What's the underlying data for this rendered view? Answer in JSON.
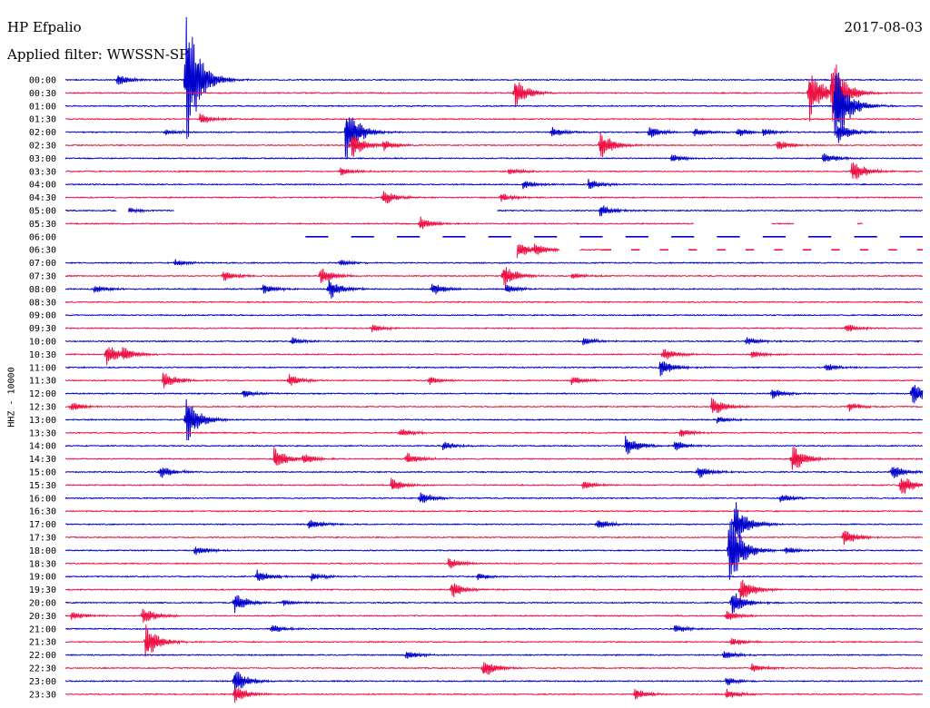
{
  "header": {
    "station": "HP Efpalio",
    "filter": "Applied filter: WWSSN-SP",
    "date": "2017-08-03"
  },
  "chart_data": {
    "type": "line",
    "title": "HP Efpalio",
    "subtitle": "Applied filter: WWSSN-SP",
    "date": "2017-08-03",
    "ylabel": "HHZ - 10000",
    "xlabel": "",
    "row_labels": [
      "00:00",
      "00:30",
      "01:00",
      "01:30",
      "02:00",
      "02:30",
      "03:00",
      "03:30",
      "04:00",
      "04:30",
      "05:00",
      "05:30",
      "06:00",
      "06:30",
      "07:00",
      "07:30",
      "08:00",
      "08:30",
      "09:00",
      "09:30",
      "10:00",
      "10:30",
      "11:00",
      "11:30",
      "12:00",
      "12:30",
      "13:00",
      "13:30",
      "14:00",
      "14:30",
      "15:00",
      "15:30",
      "16:00",
      "16:30",
      "17:00",
      "17:30",
      "18:00",
      "18:30",
      "19:00",
      "19:30",
      "20:00",
      "20:30",
      "21:00",
      "21:30",
      "22:00",
      "22:30",
      "23:00",
      "23:30"
    ],
    "row_minutes": 30,
    "colors": [
      "#0000cc",
      "#ee1144"
    ],
    "legend": "none",
    "grid": false,
    "events": [
      {
        "row": 0,
        "minute": 4.2,
        "amplitude": 6.5
      },
      {
        "row": 0,
        "minute": 1.8,
        "amplitude": 0.6
      },
      {
        "row": 1,
        "minute": 15.7,
        "amplitude": 1.3
      },
      {
        "row": 1,
        "minute": 26.0,
        "amplitude": 2.5
      },
      {
        "row": 1,
        "minute": 26.8,
        "amplitude": 3.5
      },
      {
        "row": 2,
        "minute": 26.9,
        "amplitude": 4.0
      },
      {
        "row": 3,
        "minute": 4.7,
        "amplitude": 0.5
      },
      {
        "row": 4,
        "minute": 3.5,
        "amplitude": 0.3
      },
      {
        "row": 4,
        "minute": 9.8,
        "amplitude": 2.5
      },
      {
        "row": 4,
        "minute": 17.0,
        "amplitude": 0.5
      },
      {
        "row": 4,
        "minute": 20.4,
        "amplitude": 0.6
      },
      {
        "row": 4,
        "minute": 22.0,
        "amplitude": 0.4
      },
      {
        "row": 4,
        "minute": 23.5,
        "amplitude": 0.4
      },
      {
        "row": 4,
        "minute": 24.4,
        "amplitude": 0.4
      },
      {
        "row": 4,
        "minute": 27.0,
        "amplitude": 1.0
      },
      {
        "row": 5,
        "minute": 10.0,
        "amplitude": 1.2
      },
      {
        "row": 5,
        "minute": 11.1,
        "amplitude": 0.5
      },
      {
        "row": 5,
        "minute": 18.7,
        "amplitude": 1.3
      },
      {
        "row": 5,
        "minute": 24.9,
        "amplitude": 0.5
      },
      {
        "row": 6,
        "minute": 21.2,
        "amplitude": 0.4
      },
      {
        "row": 6,
        "minute": 26.5,
        "amplitude": 0.5
      },
      {
        "row": 7,
        "minute": 9.6,
        "amplitude": 0.4
      },
      {
        "row": 7,
        "minute": 15.5,
        "amplitude": 0.3
      },
      {
        "row": 7,
        "minute": 27.5,
        "amplitude": 1.1
      },
      {
        "row": 8,
        "minute": 16.0,
        "amplitude": 0.4
      },
      {
        "row": 8,
        "minute": 18.3,
        "amplitude": 0.5
      },
      {
        "row": 9,
        "minute": 11.1,
        "amplitude": 0.7
      },
      {
        "row": 9,
        "minute": 15.2,
        "amplitude": 0.4
      },
      {
        "row": 10,
        "minute": 2.1,
        "amplitude": 0.3
      },
      {
        "row": 10,
        "minute": 18.7,
        "amplitude": 0.6
      },
      {
        "row": 11,
        "minute": 12.4,
        "amplitude": 0.6
      },
      {
        "row": 12,
        "minute": 0.8,
        "amplitude": 0.2
      },
      {
        "row": 13,
        "minute": 15.8,
        "amplitude": 0.8
      },
      {
        "row": 13,
        "minute": 16.4,
        "amplitude": 0.6
      },
      {
        "row": 14,
        "minute": 3.8,
        "amplitude": 0.3
      },
      {
        "row": 14,
        "minute": 9.6,
        "amplitude": 0.3
      },
      {
        "row": 15,
        "minute": 5.5,
        "amplitude": 0.5
      },
      {
        "row": 15,
        "minute": 8.9,
        "amplitude": 0.8
      },
      {
        "row": 15,
        "minute": 15.3,
        "amplitude": 1.1
      },
      {
        "row": 15,
        "minute": 17.7,
        "amplitude": 0.3
      },
      {
        "row": 16,
        "minute": 1.0,
        "amplitude": 0.4
      },
      {
        "row": 16,
        "minute": 6.9,
        "amplitude": 0.5
      },
      {
        "row": 16,
        "minute": 9.2,
        "amplitude": 1.0
      },
      {
        "row": 16,
        "minute": 12.8,
        "amplitude": 0.6
      },
      {
        "row": 16,
        "minute": 15.4,
        "amplitude": 0.4
      },
      {
        "row": 19,
        "minute": 10.7,
        "amplitude": 0.4
      },
      {
        "row": 19,
        "minute": 27.3,
        "amplitude": 0.4
      },
      {
        "row": 20,
        "minute": 7.9,
        "amplitude": 0.4
      },
      {
        "row": 20,
        "minute": 18.1,
        "amplitude": 0.4
      },
      {
        "row": 20,
        "minute": 23.8,
        "amplitude": 0.4
      },
      {
        "row": 21,
        "minute": 1.4,
        "amplitude": 1.0
      },
      {
        "row": 21,
        "minute": 2.0,
        "amplitude": 0.6
      },
      {
        "row": 21,
        "minute": 20.9,
        "amplitude": 0.6
      },
      {
        "row": 21,
        "minute": 24.0,
        "amplitude": 0.4
      },
      {
        "row": 22,
        "minute": 20.8,
        "amplitude": 0.8
      },
      {
        "row": 22,
        "minute": 26.6,
        "amplitude": 0.4
      },
      {
        "row": 23,
        "minute": 3.4,
        "amplitude": 0.8
      },
      {
        "row": 23,
        "minute": 7.8,
        "amplitude": 0.6
      },
      {
        "row": 23,
        "minute": 12.7,
        "amplitude": 0.4
      },
      {
        "row": 23,
        "minute": 17.7,
        "amplitude": 0.4
      },
      {
        "row": 24,
        "minute": 6.2,
        "amplitude": 0.4
      },
      {
        "row": 24,
        "minute": 24.7,
        "amplitude": 0.5
      },
      {
        "row": 24,
        "minute": 29.6,
        "amplitude": 1.2
      },
      {
        "row": 25,
        "minute": 0.2,
        "amplitude": 0.4
      },
      {
        "row": 25,
        "minute": 22.6,
        "amplitude": 0.9
      },
      {
        "row": 25,
        "minute": 27.4,
        "amplitude": 0.4
      },
      {
        "row": 26,
        "minute": 4.2,
        "amplitude": 2.2
      },
      {
        "row": 26,
        "minute": 22.8,
        "amplitude": 0.3
      },
      {
        "row": 27,
        "minute": 11.7,
        "amplitude": 0.4
      },
      {
        "row": 27,
        "minute": 21.5,
        "amplitude": 0.4
      },
      {
        "row": 28,
        "minute": 13.2,
        "amplitude": 0.4
      },
      {
        "row": 28,
        "minute": 19.6,
        "amplitude": 0.9
      },
      {
        "row": 28,
        "minute": 21.3,
        "amplitude": 0.5
      },
      {
        "row": 29,
        "minute": 7.3,
        "amplitude": 1.0
      },
      {
        "row": 29,
        "minute": 8.3,
        "amplitude": 0.5
      },
      {
        "row": 29,
        "minute": 11.9,
        "amplitude": 0.6
      },
      {
        "row": 29,
        "minute": 25.4,
        "amplitude": 1.4
      },
      {
        "row": 30,
        "minute": 3.3,
        "amplitude": 0.6
      },
      {
        "row": 30,
        "minute": 22.1,
        "amplitude": 0.6
      },
      {
        "row": 30,
        "minute": 28.9,
        "amplitude": 0.7
      },
      {
        "row": 31,
        "minute": 11.4,
        "amplitude": 0.6
      },
      {
        "row": 31,
        "minute": 18.1,
        "amplitude": 0.4
      },
      {
        "row": 31,
        "minute": 29.2,
        "amplitude": 1.0
      },
      {
        "row": 32,
        "minute": 12.4,
        "amplitude": 0.6
      },
      {
        "row": 32,
        "minute": 25.0,
        "amplitude": 0.4
      },
      {
        "row": 34,
        "minute": 8.5,
        "amplitude": 0.5
      },
      {
        "row": 34,
        "minute": 18.6,
        "amplitude": 0.5
      },
      {
        "row": 34,
        "minute": 23.4,
        "amplitude": 2.0
      },
      {
        "row": 35,
        "minute": 27.2,
        "amplitude": 0.8
      },
      {
        "row": 36,
        "minute": 4.5,
        "amplitude": 0.5
      },
      {
        "row": 36,
        "minute": 23.2,
        "amplitude": 3.5
      },
      {
        "row": 36,
        "minute": 25.2,
        "amplitude": 0.4
      },
      {
        "row": 37,
        "minute": 13.4,
        "amplitude": 0.5
      },
      {
        "row": 38,
        "minute": 6.7,
        "amplitude": 0.6
      },
      {
        "row": 38,
        "minute": 8.6,
        "amplitude": 0.4
      },
      {
        "row": 38,
        "minute": 14.4,
        "amplitude": 0.3
      },
      {
        "row": 39,
        "minute": 13.5,
        "amplitude": 0.8
      },
      {
        "row": 39,
        "minute": 23.6,
        "amplitude": 1.2
      },
      {
        "row": 40,
        "minute": 5.9,
        "amplitude": 0.9
      },
      {
        "row": 40,
        "minute": 7.6,
        "amplitude": 0.3
      },
      {
        "row": 40,
        "minute": 23.3,
        "amplitude": 1.2
      },
      {
        "row": 41,
        "minute": 0.2,
        "amplitude": 0.4
      },
      {
        "row": 41,
        "minute": 2.7,
        "amplitude": 0.8
      },
      {
        "row": 41,
        "minute": 23.1,
        "amplitude": 0.5
      },
      {
        "row": 42,
        "minute": 7.2,
        "amplitude": 0.4
      },
      {
        "row": 42,
        "minute": 21.3,
        "amplitude": 0.4
      },
      {
        "row": 43,
        "minute": 2.8,
        "amplitude": 1.5
      },
      {
        "row": 43,
        "minute": 23.3,
        "amplitude": 0.4
      },
      {
        "row": 44,
        "minute": 11.9,
        "amplitude": 0.4
      },
      {
        "row": 44,
        "minute": 23.0,
        "amplitude": 0.4
      },
      {
        "row": 45,
        "minute": 14.6,
        "amplitude": 0.9
      },
      {
        "row": 45,
        "minute": 24.0,
        "amplitude": 0.4
      },
      {
        "row": 46,
        "minute": 5.9,
        "amplitude": 1.1
      },
      {
        "row": 46,
        "minute": 23.1,
        "amplitude": 0.4
      },
      {
        "row": 47,
        "minute": 5.9,
        "amplitude": 0.8
      },
      {
        "row": 47,
        "minute": 19.9,
        "amplitude": 0.6
      },
      {
        "row": 47,
        "minute": 23.1,
        "amplitude": 0.5
      }
    ],
    "gaps": [
      {
        "row": 10,
        "from_minute": 1.8,
        "to_minute": 2.2
      },
      {
        "row": 10,
        "from_minute": 3.8,
        "to_minute": 15.1
      },
      {
        "row": 11,
        "from_minute": 22.0,
        "to_minute": 24.7
      },
      {
        "row": 11,
        "from_minute": 25.5,
        "to_minute": 27.7
      },
      {
        "row": 11,
        "from_minute": 27.9,
        "to_minute": 30.0
      },
      {
        "row": 12,
        "from_minute": 0.0,
        "to_minute": 30.0
      },
      {
        "row": 13,
        "from_minute": 0.0,
        "to_minute": 15.8
      },
      {
        "row": 13,
        "from_minute": 17.3,
        "to_minute": 18.0
      },
      {
        "row": 13,
        "from_minute": 19.0,
        "to_minute": 30.0
      }
    ],
    "dashed_rows": [
      {
        "row": 12,
        "from_minute": 8.4,
        "to_minute": 30.0,
        "dash_minutes": 0.8,
        "gap_minutes": 0.8
      },
      {
        "row": 13,
        "from_minute": 18.8,
        "to_minute": 30.0,
        "dash_minutes": 0.3,
        "gap_minutes": 0.7
      }
    ]
  }
}
